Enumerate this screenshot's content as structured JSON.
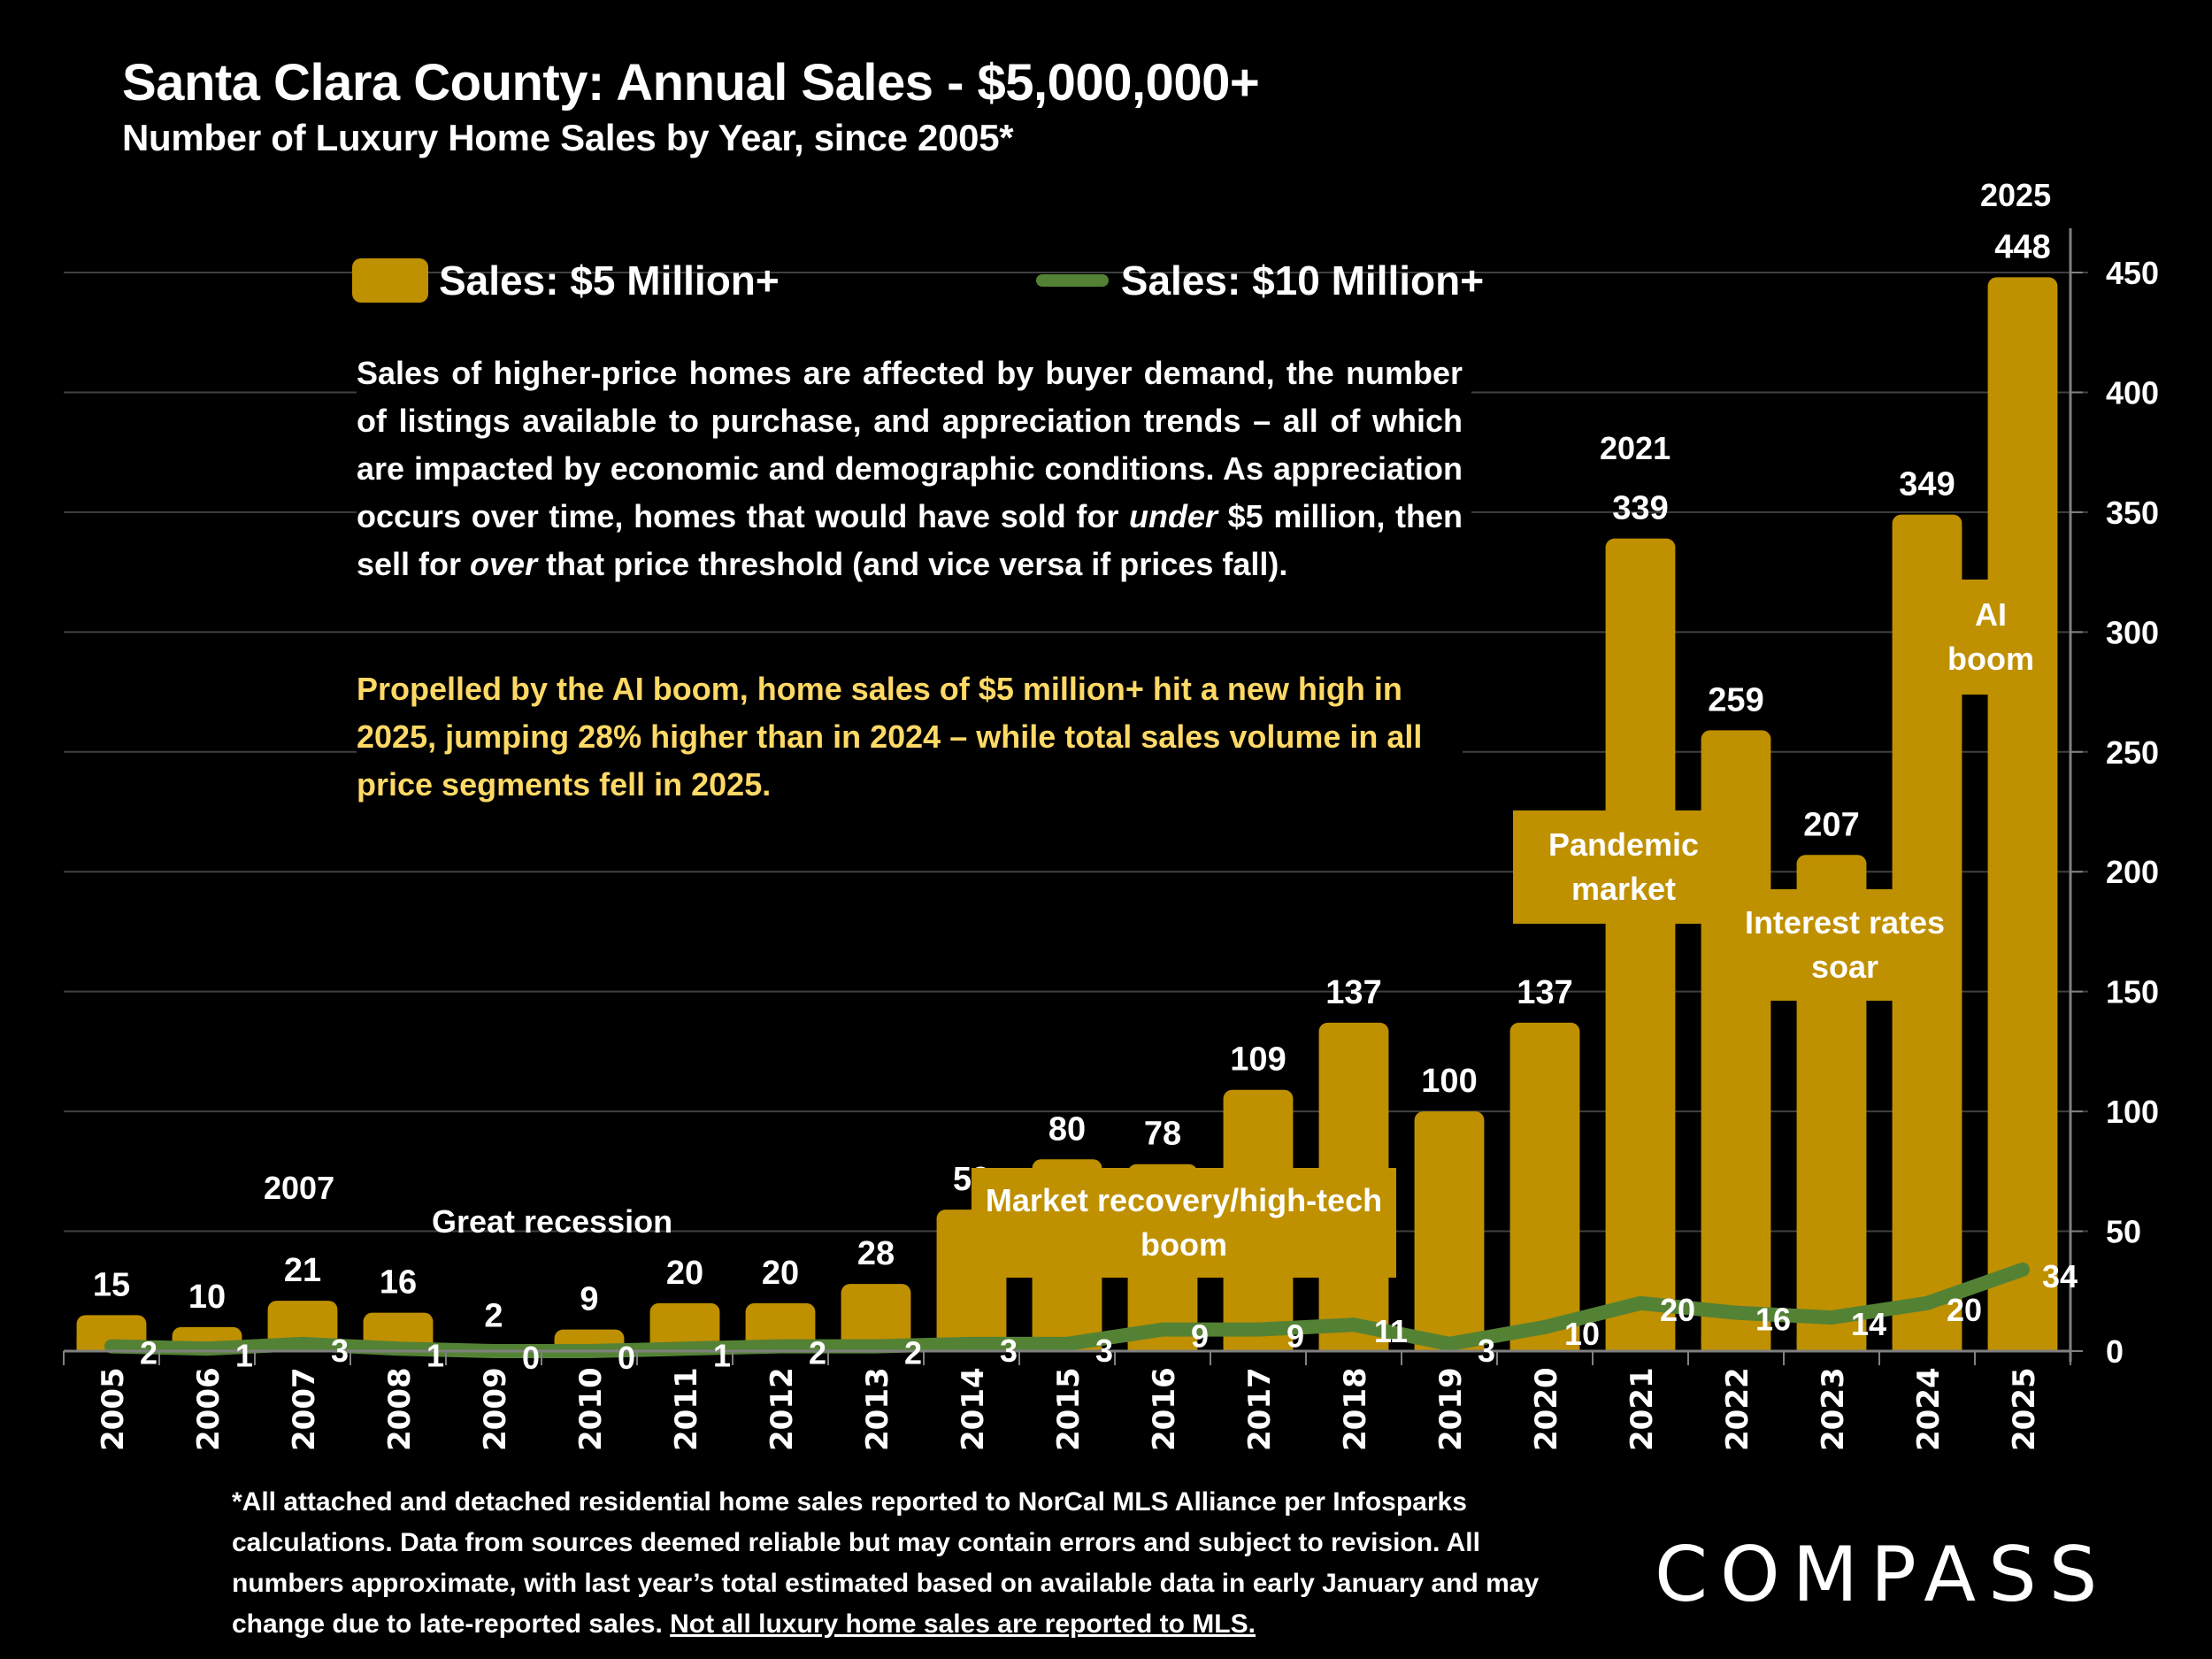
{
  "header": {
    "title": "Santa Clara County:  Annual Sales - $5,000,000+",
    "subtitle": "Number of Luxury Home Sales by Year, since 2005*"
  },
  "legend": {
    "bar_label": "Sales:  $5 Million+",
    "line_label": "Sales: $10 Million+"
  },
  "notes": {
    "paragraph1_parts": [
      "Sales of higher-price homes are affected by buyer demand, the number of listings available to purchase, and appreciation trends – all of which are impacted by economic and demographic conditions. As appreciation occurs over time, homes that would have sold for ",
      "under",
      " $5 million, then sell for ",
      "over",
      " that price threshold (and vice versa if prices fall)."
    ],
    "paragraph2": "Propelled by the AI boom, home sales of $5 million+ hit a new high in 2025, jumping 28% higher than in 2024 – while total sales volume in all price segments fell in 2025."
  },
  "annotations": {
    "great_recession": "Great recession",
    "label_2007": "2007",
    "label_2021": "2021",
    "label_2025": "2025",
    "market_recovery": "Market recovery/high-tech boom",
    "pandemic": "Pandemic market",
    "interest_rates": "Interest rates soar",
    "ai_boom": "AI boom"
  },
  "footnote": {
    "text": "*All attached and detached residential home sales reported to NorCal MLS Alliance per Infosparks calculations. Data from sources deemed reliable but may contain errors and subject to revision. All numbers approximate, with last year’s total estimated based on available data in early January and may change due to late-reported sales. ",
    "underlined": "Not all luxury home sales are reported to MLS."
  },
  "brand": {
    "logo_text": "COMPASS"
  },
  "colors": {
    "bar": "#BF9000",
    "line": "#548235",
    "highlight_text": "#FFD966",
    "grid": "#404040"
  },
  "chart_data": {
    "type": "bar",
    "title": "Santa Clara County:  Annual Sales - $5,000,000+",
    "subtitle": "Number of Luxury Home Sales by Year, since 2005*",
    "xlabel": "",
    "ylabel": "",
    "categories": [
      "2005",
      "2006",
      "2007",
      "2008",
      "2009",
      "2010",
      "2011",
      "2012",
      "2013",
      "2014",
      "2015",
      "2016",
      "2017",
      "2018",
      "2019",
      "2020",
      "2021",
      "2022",
      "2023",
      "2024",
      "2025"
    ],
    "series": [
      {
        "name": "Sales:  $5 Million+",
        "type": "bar",
        "values": [
          15,
          10,
          21,
          16,
          2,
          9,
          20,
          20,
          28,
          59,
          80,
          78,
          109,
          137,
          100,
          137,
          339,
          259,
          207,
          349,
          448
        ]
      },
      {
        "name": "Sales: $10 Million+",
        "type": "line",
        "values": [
          2,
          1,
          3,
          1,
          0,
          0,
          1,
          2,
          2,
          3,
          3,
          9,
          9,
          11,
          3,
          10,
          20,
          16,
          14,
          20,
          34
        ]
      }
    ],
    "y_axis": {
      "position": "right",
      "ylim": [
        0,
        450
      ],
      "ticks": [
        0,
        50,
        100,
        150,
        200,
        250,
        300,
        350,
        400,
        450
      ]
    },
    "grid": true,
    "legend": "top"
  }
}
